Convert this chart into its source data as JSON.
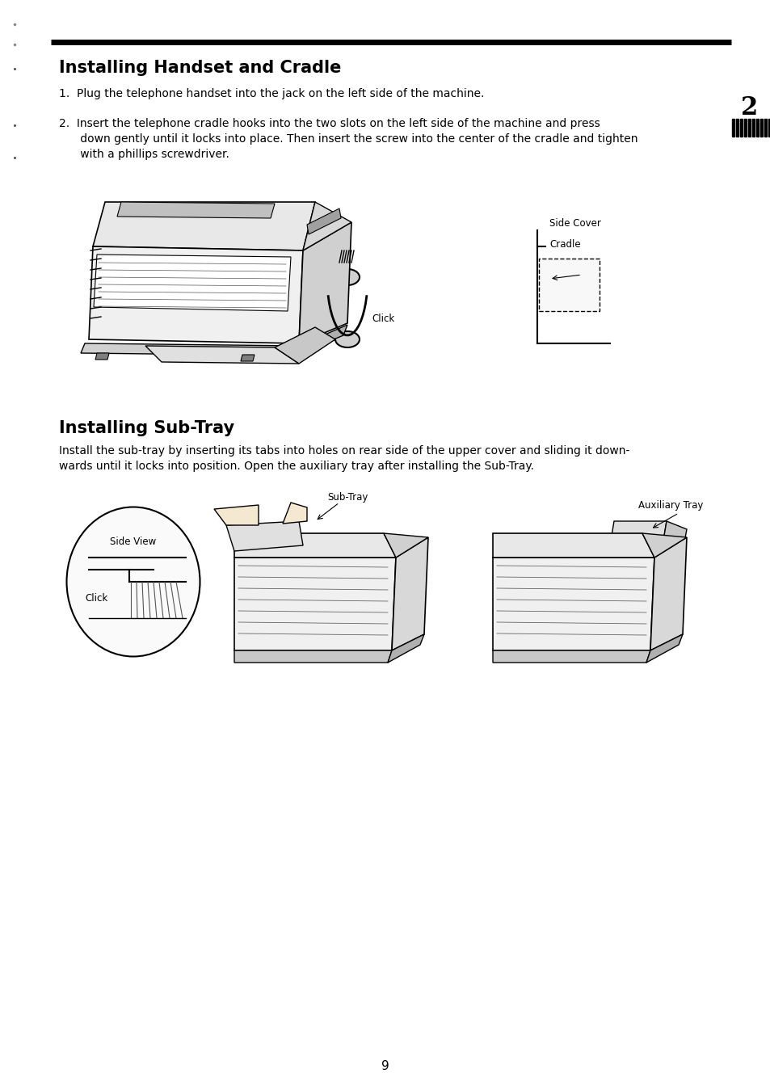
{
  "title1": "Installing Handset and Cradle",
  "step1": "1.  Plug the telephone handset into the jack on the left side of the machine.",
  "step2_line1": "2.  Insert the telephone cradle hooks into the two slots on the left side of the machine and press",
  "step2_line2": "      down gently until it locks into place. Then insert the screw into the center of the cradle and tighten",
  "step2_line3": "      with a phillips screwdriver.",
  "label_side_cover": "Side Cover",
  "label_cradle": "Cradle",
  "label_click1": "Click",
  "title2": "Installing Sub-Tray",
  "sub_tray_text1": "Install the sub-tray by inserting its tabs into holes on rear side of the upper cover and sliding it down-",
  "sub_tray_text2": "wards until it locks into position. Open the auxiliary tray after installing the Sub-Tray.",
  "label_sub_tray": "Sub-Tray",
  "label_auxiliary_tray": "Auxiliary Tray",
  "label_side_view": "Side View",
  "label_click2": "Click",
  "page_num": "9",
  "chapter_num": "2",
  "bg_color": "#ffffff",
  "text_color": "#000000"
}
